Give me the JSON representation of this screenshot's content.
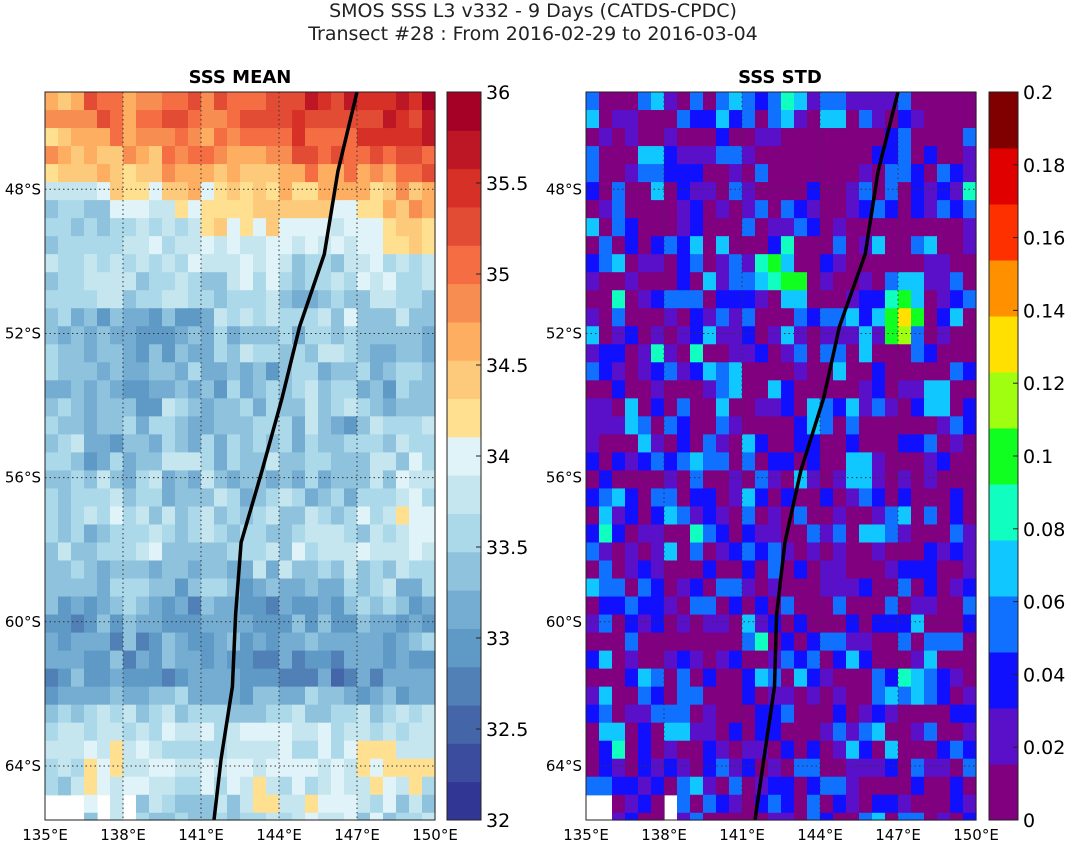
{
  "title_line1": "SMOS SSS L3 v332 - 9 Days (CATDS-CPDC)",
  "title_line2": "Transect #28 : From 2016-02-29 to 2016-03-04",
  "chart_data": [
    {
      "type": "heatmap",
      "title": "SSS MEAN",
      "x_range": [
        135,
        150
      ],
      "y_range": [
        -65.5,
        -45.3
      ],
      "x_ticks": [
        135,
        138,
        141,
        144,
        147,
        150
      ],
      "x_tick_labels": [
        "135°E",
        "138°E",
        "141°E",
        "144°E",
        "147°E",
        "150°E"
      ],
      "y_ticks": [
        -48,
        -52,
        -56,
        -60,
        -64
      ],
      "y_tick_labels": [
        "48°S",
        "52°S",
        "56°S",
        "60°S",
        "64°S"
      ],
      "grid": true,
      "colorbar": {
        "min": 32,
        "max": 36,
        "ticks": [
          32,
          32.5,
          33,
          33.5,
          34,
          34.5,
          35,
          35.5,
          36
        ],
        "tick_labels": [
          "32",
          "32.5",
          "33",
          "33.5",
          "34",
          "34.5",
          "35",
          "35.5",
          "36"
        ],
        "colors": [
          "#313695",
          "#3b4c9f",
          "#4565a9",
          "#5080b6",
          "#5f99c6",
          "#74add1",
          "#8fc2dd",
          "#abd9e9",
          "#c6e6ef",
          "#e0f3f8",
          "#fee090",
          "#fdc97a",
          "#fdae61",
          "#f88d52",
          "#f46d43",
          "#e24b34",
          "#d73027",
          "#bd1726",
          "#a50026"
        ]
      },
      "latitude_profile": [
        [
          -45.3,
          35.3
        ],
        [
          -47.0,
          34.9
        ],
        [
          -48.5,
          34.1
        ],
        [
          -50.0,
          33.7
        ],
        [
          -52.0,
          33.3
        ],
        [
          -54.0,
          33.4
        ],
        [
          -56.0,
          33.5
        ],
        [
          -58.0,
          33.7
        ],
        [
          -60.0,
          33.1
        ],
        [
          -61.5,
          32.9
        ],
        [
          -62.8,
          33.8
        ],
        [
          -64.0,
          34.0
        ],
        [
          -65.5,
          33.6
        ]
      ],
      "transect": [
        [
          147.0,
          -45.3
        ],
        [
          146.3,
          -47.5
        ],
        [
          145.7,
          -49.8
        ],
        [
          144.8,
          -51.8
        ],
        [
          144.1,
          -53.8
        ],
        [
          143.3,
          -55.8
        ],
        [
          142.6,
          -57.8
        ],
        [
          142.4,
          -59.8
        ],
        [
          142.2,
          -61.8
        ],
        [
          141.8,
          -63.8
        ],
        [
          141.5,
          -65.5
        ]
      ],
      "missing_cells": [
        [
          135.0,
          136.5,
          -65.5,
          -64.9
        ],
        [
          136.9,
          137.5,
          -65.5,
          -64.9
        ],
        [
          138.0,
          138.5,
          -65.5,
          -64.9
        ]
      ]
    },
    {
      "type": "heatmap",
      "title": "SSS STD",
      "x_range": [
        135,
        150
      ],
      "y_range": [
        -65.5,
        -45.3
      ],
      "x_ticks": [
        135,
        138,
        141,
        144,
        147,
        150
      ],
      "x_tick_labels": [
        "135°E",
        "138°E",
        "141°E",
        "144°E",
        "147°E",
        "150°E"
      ],
      "y_ticks": [
        -48,
        -52,
        -56,
        -60,
        -64
      ],
      "y_tick_labels": [
        "48°S",
        "52°S",
        "56°S",
        "60°S",
        "64°S"
      ],
      "grid": true,
      "colorbar": {
        "min": 0,
        "max": 0.2,
        "ticks": [
          0,
          0.02,
          0.04,
          0.06,
          0.08,
          0.1,
          0.12,
          0.14,
          0.16,
          0.18,
          0.2
        ],
        "tick_labels": [
          "0",
          "0.02",
          "0.04",
          "0.06",
          "0.08",
          "0.1",
          "0.12",
          "0.14",
          "0.16",
          "0.18",
          "0.2"
        ],
        "colors": [
          "#800080",
          "#5a10c8",
          "#1010ff",
          "#1070ff",
          "#10c8ff",
          "#10ffc0",
          "#10ff20",
          "#a0ff10",
          "#ffe000",
          "#ff9000",
          "#ff3000",
          "#e00000",
          "#800000"
        ]
      },
      "hotspots": [
        [
          143.0,
          -50.6,
          0.11
        ],
        [
          142.2,
          -50.2,
          0.11
        ],
        [
          147.2,
          -51.7,
          0.15
        ],
        [
          147.2,
          -51.0,
          0.11
        ],
        [
          145.5,
          -55.8,
          0.09
        ],
        [
          144.5,
          -46.0,
          0.09
        ],
        [
          137.5,
          -47.2,
          0.08
        ],
        [
          138.5,
          -63.0,
          0.08
        ],
        [
          147.7,
          -61.8,
          0.08
        ],
        [
          142.8,
          -45.6,
          0.09
        ]
      ],
      "transect": [
        [
          147.0,
          -45.3
        ],
        [
          146.3,
          -47.5
        ],
        [
          145.7,
          -49.8
        ],
        [
          144.8,
          -51.8
        ],
        [
          144.1,
          -53.8
        ],
        [
          143.3,
          -55.8
        ],
        [
          142.6,
          -57.8
        ],
        [
          142.4,
          -59.8
        ],
        [
          142.2,
          -61.8
        ],
        [
          141.8,
          -63.8
        ],
        [
          141.5,
          -65.5
        ]
      ],
      "missing_cells": [
        [
          135.0,
          136.2,
          -65.5,
          -64.9
        ],
        [
          138.0,
          138.5,
          -65.5,
          -64.9
        ]
      ]
    }
  ]
}
